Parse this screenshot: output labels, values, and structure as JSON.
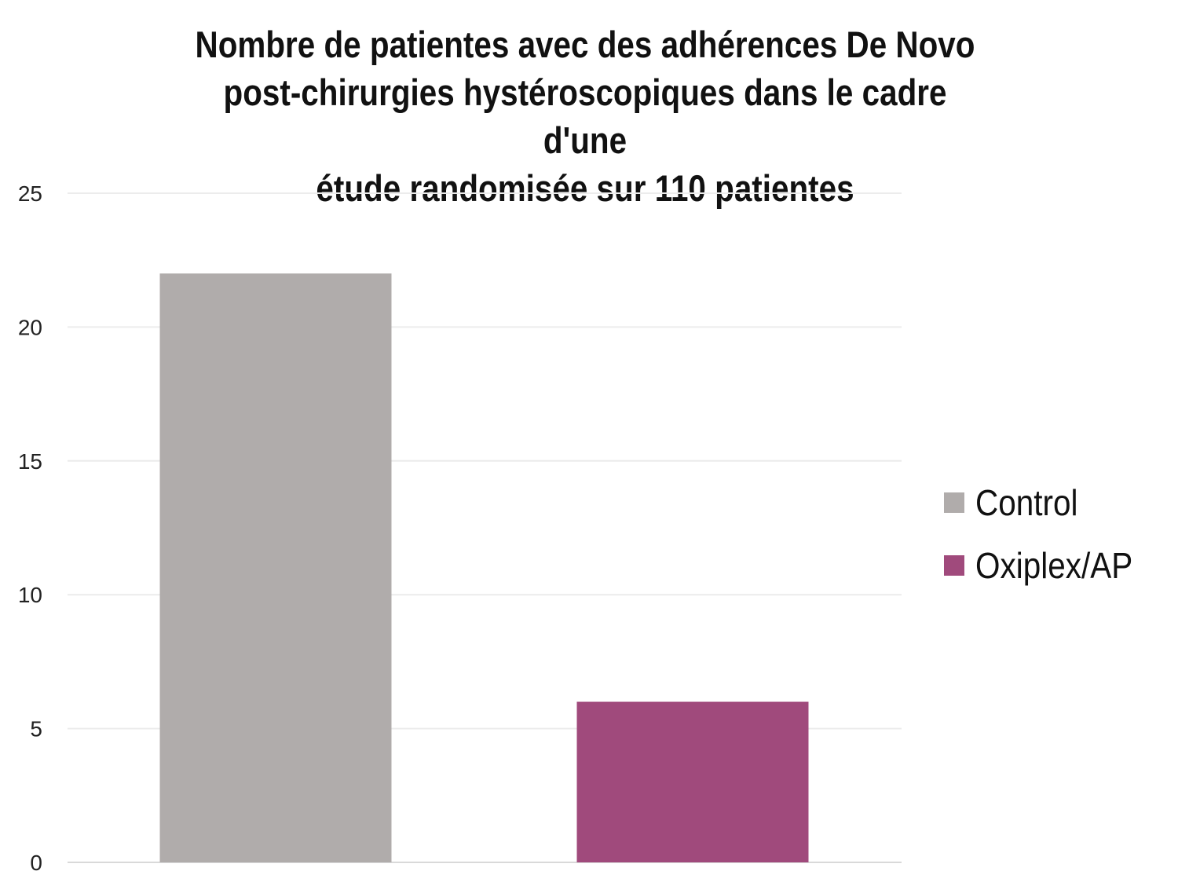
{
  "chart_data": {
    "type": "bar",
    "title_lines": [
      "Nombre de patientes avec des adhérences De Novo",
      "post-chirurgies hystéroscopiques dans le cadre d'une",
      "étude randomisée sur 110 patientes"
    ],
    "xlabel": "",
    "ylabel": "",
    "ylim": [
      0,
      25
    ],
    "yticks": [
      "0",
      "5",
      "10",
      "15",
      "20",
      "25"
    ],
    "grid": true,
    "legend_position": "right",
    "series": [
      {
        "name": "Control",
        "value": 22,
        "color": "#b0acab"
      },
      {
        "name": "Oxiplex/AP",
        "value": 6,
        "color": "#a04a7c"
      }
    ]
  }
}
